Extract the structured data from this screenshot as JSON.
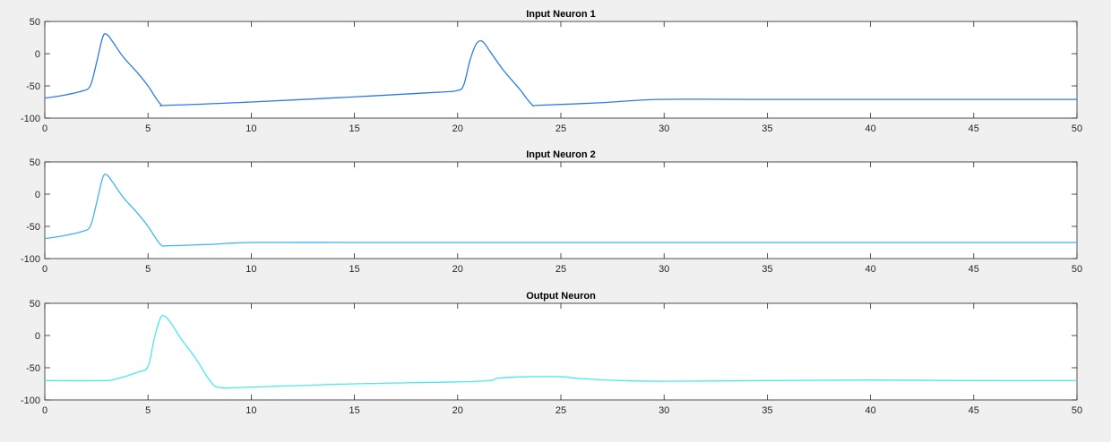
{
  "chart_data": [
    {
      "type": "line",
      "title": "Input Neuron 1",
      "xlabel": "",
      "ylabel": "",
      "xlim": [
        0,
        50
      ],
      "ylim": [
        -100,
        50
      ],
      "xticks": [
        0,
        5,
        10,
        15,
        20,
        25,
        30,
        35,
        40,
        45,
        50
      ],
      "yticks": [
        -100,
        -50,
        0,
        50
      ],
      "grid": false,
      "series": [
        {
          "color": "#2c7be5",
          "x": [
            0,
            1,
            1.8,
            2.2,
            2.5,
            2.8,
            3.0,
            3.3,
            3.8,
            4.5,
            5.0,
            5.6,
            6.0,
            10,
            15,
            19,
            20.0,
            20.3,
            20.6,
            20.9,
            21.2,
            21.6,
            22.2,
            23.0,
            23.6,
            24.0,
            27,
            29.8,
            35,
            40,
            45,
            50
          ],
          "y": [
            -69,
            -64,
            -58,
            -50,
            -15,
            25,
            30,
            18,
            -5,
            -30,
            -50,
            -78,
            -80,
            -75,
            -67,
            -60,
            -57,
            -48,
            -10,
            15,
            19,
            2,
            -25,
            -55,
            -79,
            -80,
            -76,
            -71,
            -71,
            -71,
            -71,
            -71
          ]
        }
      ]
    },
    {
      "type": "line",
      "title": "Input Neuron 2",
      "xlabel": "",
      "ylabel": "",
      "xlim": [
        0,
        50
      ],
      "ylim": [
        -100,
        50
      ],
      "xticks": [
        0,
        5,
        10,
        15,
        20,
        25,
        30,
        35,
        40,
        45,
        50
      ],
      "yticks": [
        -100,
        -50,
        0,
        50
      ],
      "grid": false,
      "series": [
        {
          "color": "#3fb5ef",
          "x": [
            0,
            1,
            1.8,
            2.2,
            2.5,
            2.8,
            3.0,
            3.3,
            3.8,
            4.5,
            5.0,
            5.6,
            6.0,
            8,
            10,
            15,
            20,
            25,
            30,
            35,
            40,
            45,
            50
          ],
          "y": [
            -69,
            -64,
            -58,
            -50,
            -15,
            25,
            30,
            18,
            -5,
            -30,
            -50,
            -78,
            -80,
            -78,
            -75,
            -75,
            -75,
            -75,
            -75,
            -75,
            -75,
            -75,
            -75
          ]
        }
      ]
    },
    {
      "type": "line",
      "title": "Output Neuron",
      "xlabel": "",
      "ylabel": "",
      "xlim": [
        0,
        50
      ],
      "ylim": [
        -100,
        50
      ],
      "xticks": [
        0,
        5,
        10,
        15,
        20,
        25,
        30,
        35,
        40,
        45,
        50
      ],
      "yticks": [
        -100,
        -50,
        0,
        50
      ],
      "grid": false,
      "series": [
        {
          "color": "#4ce8ee",
          "x": [
            0,
            2.8,
            3.5,
            4.5,
            5.0,
            5.3,
            5.6,
            5.8,
            6.1,
            6.6,
            7.3,
            8.0,
            8.5,
            10,
            15,
            21,
            22,
            23.5,
            25,
            26,
            28,
            30,
            35,
            40,
            45,
            50
          ],
          "y": [
            -70,
            -70,
            -67,
            -57,
            -48,
            -5,
            27,
            30,
            20,
            -5,
            -35,
            -70,
            -81,
            -80,
            -75,
            -71,
            -66,
            -64,
            -64,
            -67,
            -70,
            -71,
            -70,
            -69,
            -70,
            -70
          ]
        }
      ]
    }
  ]
}
